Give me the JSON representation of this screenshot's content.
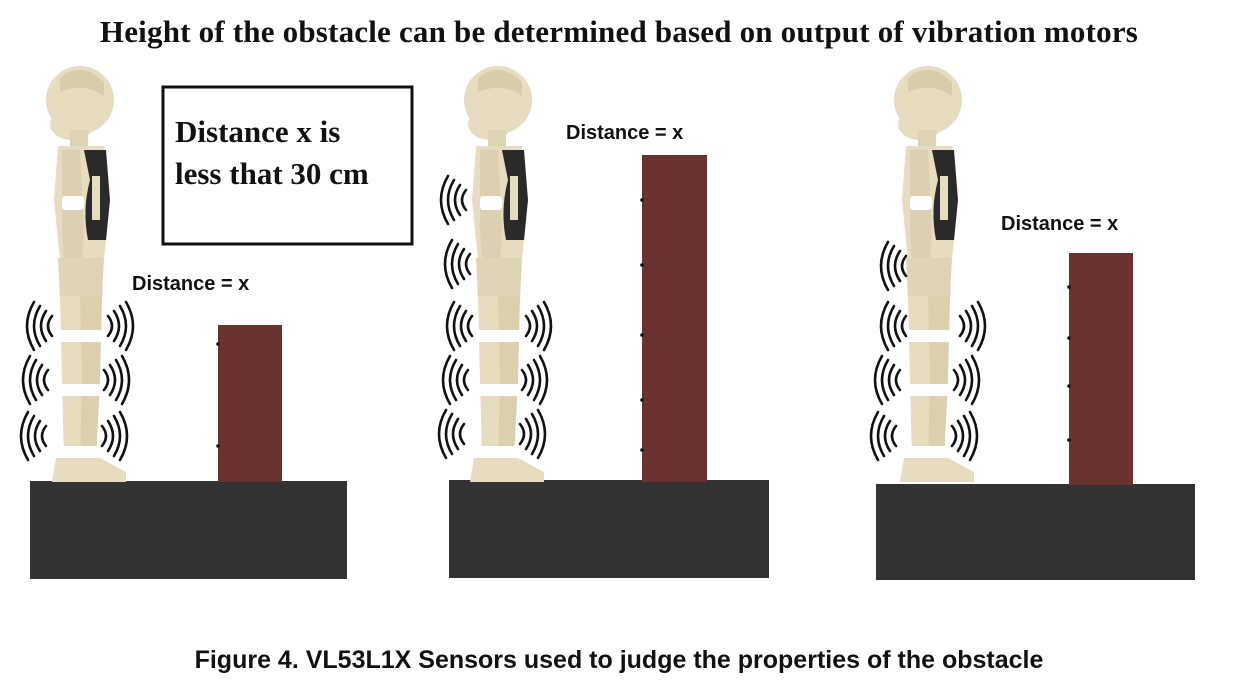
{
  "title": "Height of the obstacle can be determined based on output of vibration motors",
  "note": {
    "line1": "Distance x is",
    "line2": "less that 30 cm"
  },
  "panels": [
    {
      "distance_label": "Distance = x"
    },
    {
      "distance_label": "Distance = x"
    },
    {
      "distance_label": "Distance = x"
    }
  ],
  "caption": "Figure 4.  VL53L1X Sensors used to judge the properties of the obstacle",
  "colors": {
    "platform": "#333333",
    "obstacle": "#6b3232",
    "figure_skin": "#e7dcc0",
    "figure_band": "#ffffff",
    "figure_vest": "#2a2a2a",
    "vibration": "#111111"
  }
}
